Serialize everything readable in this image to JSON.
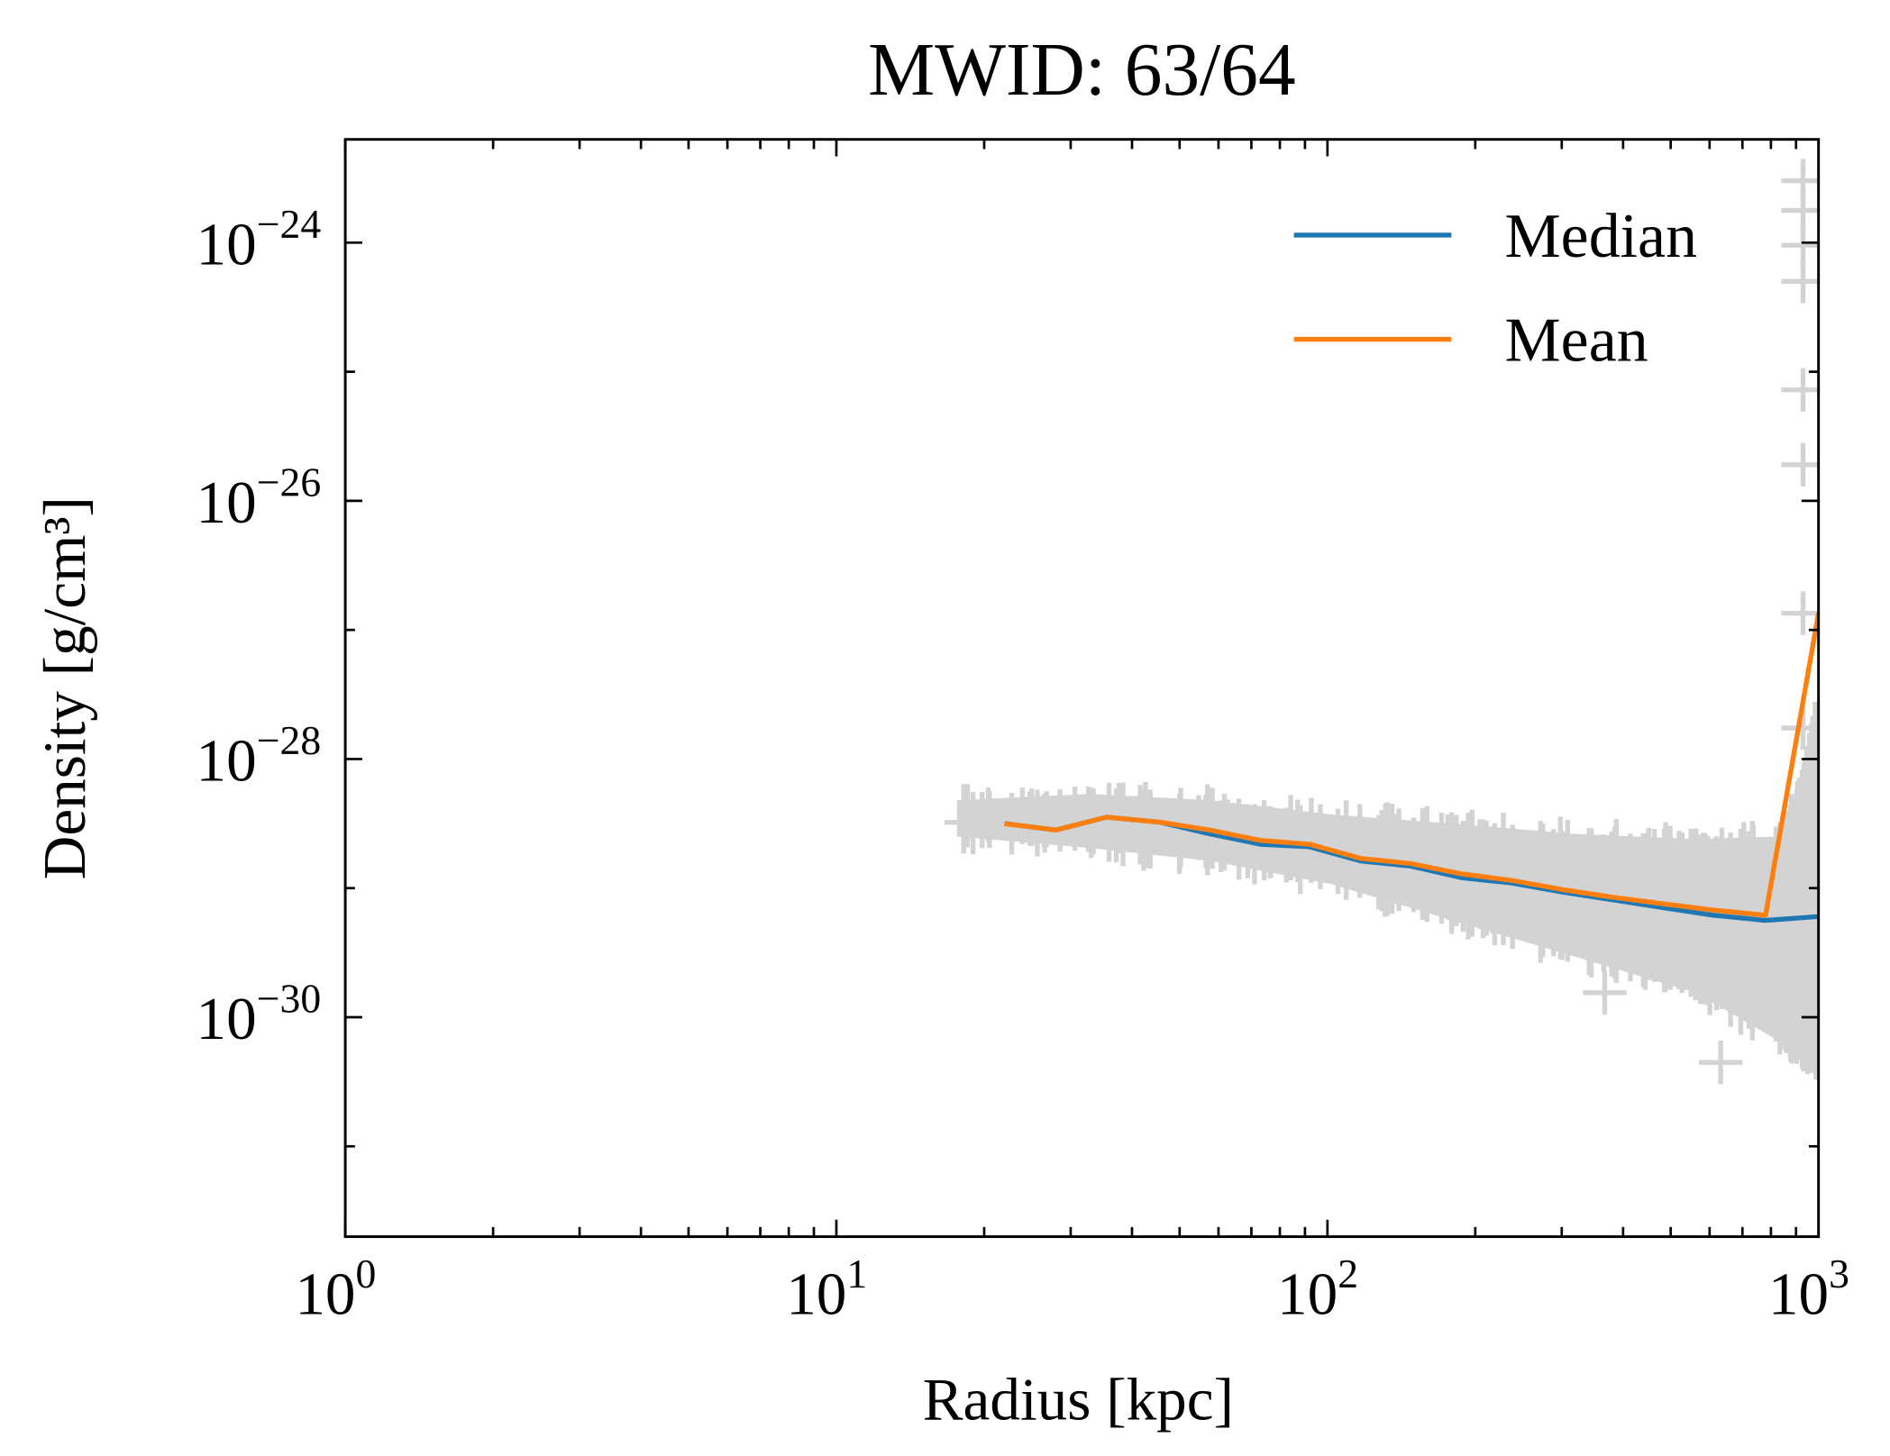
{
  "chart_data": {
    "type": "line",
    "title": "MWID: 63/64",
    "xlabel": "Radius [kpc]",
    "ylabel": "Density [g/cm³]",
    "xscale": "log",
    "yscale": "log",
    "xlim": [
      1,
      1000
    ],
    "ylim_log10": [
      -31.7,
      -23.2
    ],
    "x_tick_labels": [
      {
        "base": "10",
        "exp": "0",
        "value": 1
      },
      {
        "base": "10",
        "exp": "1",
        "value": 10
      },
      {
        "base": "10",
        "exp": "2",
        "value": 100
      },
      {
        "base": "10",
        "exp": "3",
        "value": 1000
      }
    ],
    "y_tick_labels": [
      {
        "base": "10",
        "exp": "−24",
        "value_log10": -24
      },
      {
        "base": "10",
        "exp": "−26",
        "value_log10": -26
      },
      {
        "base": "10",
        "exp": "−28",
        "value_log10": -28
      },
      {
        "base": "10",
        "exp": "−30",
        "value_log10": -30
      }
    ],
    "grid": false,
    "legend_position": "top-right",
    "series": [
      {
        "name": "Median",
        "color": "#1f77b4",
        "x": [
          22,
          28,
          35.5,
          45.7,
          57.6,
          73,
          92,
          117,
          148,
          188,
          237,
          300,
          380,
          480,
          610,
          780,
          1000
        ],
        "log10_y": [
          -28.5,
          -28.55,
          -28.45,
          -28.49,
          -28.58,
          -28.66,
          -28.68,
          -28.79,
          -28.83,
          -28.92,
          -28.96,
          -29.03,
          -29.09,
          -29.15,
          -29.21,
          -29.25,
          -29.22
        ]
      },
      {
        "name": "Mean",
        "color": "#ff7f0e",
        "x": [
          22,
          28,
          35.5,
          45.7,
          57.6,
          73,
          92,
          117,
          148,
          188,
          237,
          300,
          380,
          480,
          610,
          780,
          1000
        ],
        "log10_y": [
          -28.5,
          -28.55,
          -28.45,
          -28.49,
          -28.55,
          -28.63,
          -28.66,
          -28.77,
          -28.81,
          -28.89,
          -28.94,
          -29.01,
          -29.07,
          -29.12,
          -29.17,
          -29.21,
          -26.87
        ]
      }
    ],
    "scatter": {
      "color": "#d3d3d3",
      "marker": "+",
      "envelope": {
        "x": [
          17.6,
          32.9,
          58,
          102,
          180,
          318,
          562,
          836,
          937,
          991
        ],
        "upper_log10_y": [
          -28.32,
          -28.27,
          -28.32,
          -28.43,
          -28.5,
          -28.58,
          -28.62,
          -28.6,
          -28.13,
          -27.57
        ],
        "lower_log10_y": [
          -28.6,
          -28.69,
          -28.79,
          -28.97,
          -29.25,
          -29.53,
          -29.81,
          -30.19,
          -30.3,
          -30.37
        ]
      },
      "outliers": {
        "x": [
          930,
          930,
          930,
          930,
          930,
          930,
          930,
          930,
          632,
          367,
          18.4,
          24.8
        ],
        "log10_y": [
          -23.52,
          -23.75,
          -24.02,
          -24.3,
          -25.14,
          -25.72,
          -26.87,
          -27.76,
          -30.35,
          -29.81,
          -28.49,
          -28.5
        ]
      }
    }
  }
}
